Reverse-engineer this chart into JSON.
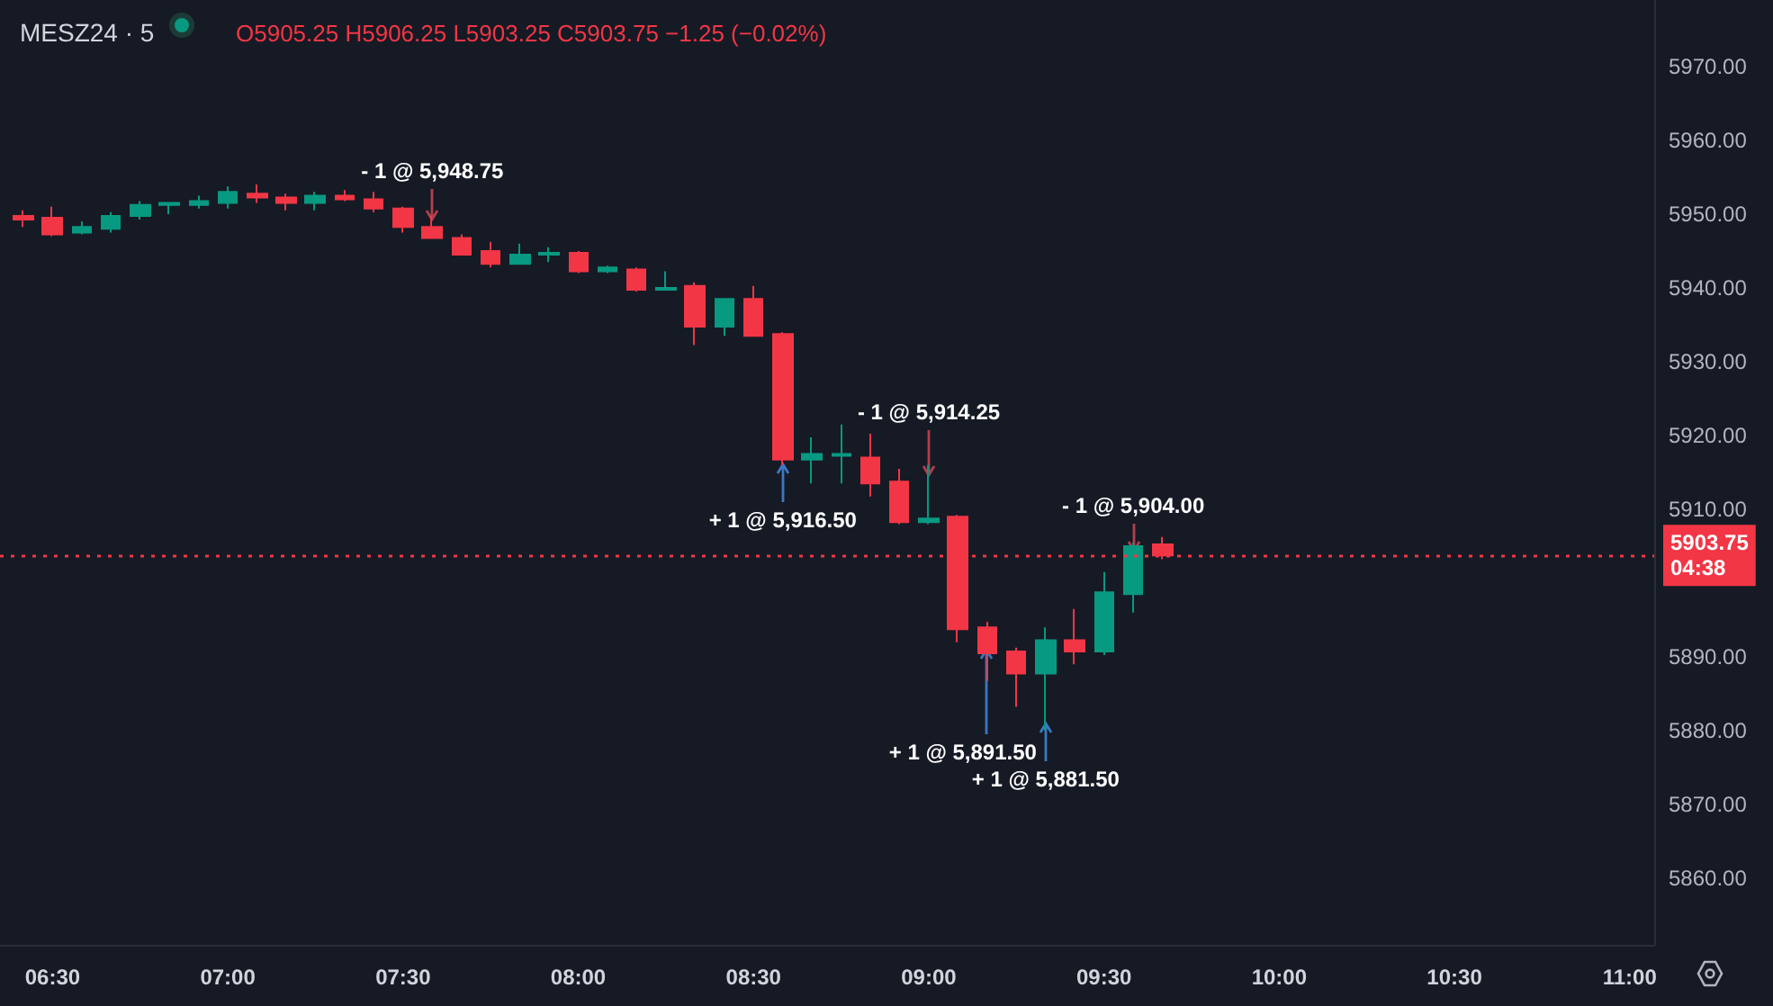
{
  "chart_data": {
    "type": "candlestick",
    "title": "MESZ24 · 5",
    "subtitle": "O5905.25 H5906.25 L5903.25 C5903.75 −1.25 (−0.02%)",
    "x": [
      6.41667,
      6.5,
      6.58333,
      6.66667,
      6.75,
      6.83333,
      6.91667,
      7.0,
      7.08333,
      7.16667,
      7.25,
      7.33333,
      7.41667,
      7.5,
      7.58333,
      7.66667,
      7.75,
      7.83333,
      7.91667,
      8.0,
      8.08333,
      8.16667,
      8.25,
      8.33333,
      8.41667,
      8.5,
      8.58333,
      8.66667,
      8.75,
      8.83333,
      8.91667,
      9.0,
      9.08333,
      9.16667,
      9.25,
      9.33333,
      9.41667,
      9.5,
      9.58333,
      9.66667
    ],
    "series": [
      {
        "colors": [
          "#f23645",
          "#f23645",
          "#089981",
          "#089981",
          "#089981",
          "#089981",
          "#089981",
          "#089981",
          "#f23645",
          "#f23645",
          "#089981",
          "#f23645",
          "#f23645",
          "#f23645",
          "#f23645",
          "#f23645",
          "#f23645",
          "#089981",
          "#089981",
          "#f23645",
          "#089981",
          "#f23645",
          "#089981",
          "#f23645",
          "#089981",
          "#f23645",
          "#f23645",
          "#089981",
          "#089981",
          "#f23645",
          "#f23645",
          "#089981",
          "#f23645",
          "#f23645",
          "#f23645",
          "#089981",
          "#f23645",
          "#089981",
          "#089981",
          "#f23645"
        ],
        "ohlc": [
          [
            5949.75,
            5950.5,
            5948.25,
            5949.25
          ],
          [
            5949.5,
            5951,
            5947,
            5947.25
          ],
          [
            5947.5,
            5949,
            5947.25,
            5948.25
          ],
          [
            5948,
            5950.25,
            5947.5,
            5949.75
          ],
          [
            5949.75,
            5951.75,
            5949.25,
            5951.25
          ],
          [
            5951.25,
            5951.5,
            5950,
            5951.5
          ],
          [
            5951.25,
            5952.5,
            5950.75,
            5951.75
          ],
          [
            5951.5,
            5953.75,
            5950.75,
            5953
          ],
          [
            5952.75,
            5954,
            5951.5,
            5952.25
          ],
          [
            5952.25,
            5952.75,
            5950.5,
            5951.5
          ],
          [
            5951.5,
            5953,
            5950.5,
            5952.5
          ],
          [
            5952.5,
            5953.25,
            5951.75,
            5952
          ],
          [
            5952,
            5953,
            5950.25,
            5950.75
          ],
          [
            5950.75,
            5951,
            5947.5,
            5948.25
          ],
          [
            5948.25,
            5949.75,
            5946.75,
            5946.75
          ],
          [
            5946.75,
            5947.25,
            5944.5,
            5944.5
          ],
          [
            5945,
            5946.25,
            5942.75,
            5943.25
          ],
          [
            5943.25,
            5946,
            5943.25,
            5944.5
          ],
          [
            5944.5,
            5945.5,
            5943.5,
            5944.75
          ],
          [
            5944.75,
            5945,
            5942,
            5942.25
          ],
          [
            5942.25,
            5943,
            5942,
            5942.75
          ],
          [
            5942.5,
            5942.75,
            5939.5,
            5939.75
          ],
          [
            5939.75,
            5942.25,
            5939.75,
            5940
          ],
          [
            5940.25,
            5940.75,
            5932.25,
            5934.75
          ],
          [
            5934.75,
            5938.5,
            5933.5,
            5938.5
          ],
          [
            5938.5,
            5940.25,
            5933.5,
            5933.5
          ],
          [
            5933.75,
            5934,
            5916,
            5916.75
          ],
          [
            5916.75,
            5919.75,
            5913.5,
            5917.5
          ],
          [
            5917.25,
            5921.5,
            5913.5,
            5917.5
          ],
          [
            5917,
            5920.25,
            5911.75,
            5913.5
          ],
          [
            5913.75,
            5915.5,
            5908,
            5908.25
          ],
          [
            5908.25,
            5916,
            5908,
            5908.75
          ],
          [
            5909,
            5909.25,
            5892,
            5893.75
          ],
          [
            5894,
            5894.75,
            5886.75,
            5890.5
          ],
          [
            5890.75,
            5891.25,
            5883.25,
            5887.75
          ],
          [
            5887.75,
            5894,
            5880,
            5892.25
          ],
          [
            5892.25,
            5896.5,
            5889,
            5890.75
          ],
          [
            5890.75,
            5901.5,
            5890.25,
            5898.75
          ],
          [
            5898.5,
            5905.5,
            5896,
            5905
          ],
          [
            5905.25,
            5906.25,
            5903.25,
            5903.75
          ]
        ]
      }
    ],
    "xlim": [
      6.35,
      11.07
    ],
    "xticks": [
      {
        "value": 6.5,
        "label": "06:30"
      },
      {
        "value": 7,
        "label": "07:00"
      },
      {
        "value": 7.5,
        "label": "07:30"
      },
      {
        "value": 8,
        "label": "08:00"
      },
      {
        "value": 8.5,
        "label": "08:30"
      },
      {
        "value": 9,
        "label": "09:00"
      },
      {
        "value": 9.5,
        "label": "09:30"
      },
      {
        "value": 10,
        "label": "10:00"
      },
      {
        "value": 10.5,
        "label": "10:30"
      },
      {
        "value": 11,
        "label": "11:00"
      }
    ],
    "ylim": [
      5851,
      5979
    ],
    "yticks": [
      {
        "value": 5860,
        "label": "5860.00"
      },
      {
        "value": 5870,
        "label": "5870.00"
      },
      {
        "value": 5880,
        "label": "5880.00"
      },
      {
        "value": 5890,
        "label": "5890.00"
      },
      {
        "value": 5910,
        "label": "5910.00"
      },
      {
        "value": 5920,
        "label": "5920.00"
      },
      {
        "value": 5930,
        "label": "5930.00"
      },
      {
        "value": 5940,
        "label": "5940.00"
      },
      {
        "value": 5950,
        "label": "5950.00"
      },
      {
        "value": 5960,
        "label": "5960.00"
      },
      {
        "value": 5970,
        "label": "5970.00"
      }
    ],
    "ref_lines": [
      {
        "axis": "y",
        "value": 5903.75,
        "label": "5903.75\n04:38",
        "color": "#f23645",
        "line_style": "dotted"
      }
    ],
    "annotations": [
      {
        "text": "- 1 @ 5,948.75",
        "x": 7.58333,
        "y": 5948.75
      },
      {
        "text": "+ 1 @ 5,916.50",
        "x": 8.58333,
        "y": 5916.5
      },
      {
        "text": "- 1 @ 5,914.25",
        "x": 9.0,
        "y": 5914.25
      },
      {
        "text": "+ 1 @ 5,891.50",
        "x": 9.16667,
        "y": 5891.5
      },
      {
        "text": "+ 1 @ 5,881.50",
        "x": 9.33333,
        "y": 5881.5
      },
      {
        "text": "- 1 @ 5,904.00",
        "x": 9.58333,
        "y": 5904.0
      }
    ],
    "grid": false
  }
}
